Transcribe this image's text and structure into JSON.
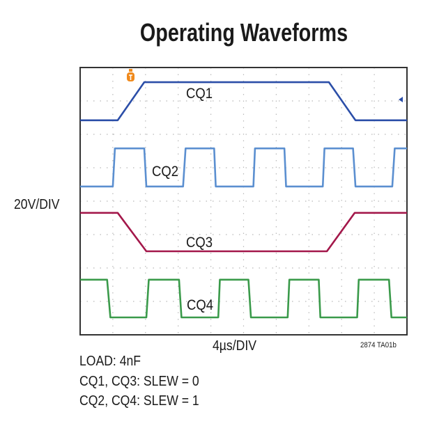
{
  "chart_data": {
    "type": "line",
    "title": "Operating Waveforms",
    "xlabel": "4µs/DIV",
    "ylabel": "20V/DIV",
    "x_unit": "µs",
    "y_unit": "divisions",
    "xlim": [
      0,
      40
    ],
    "ylim": [
      0,
      8
    ],
    "grid": true,
    "figure_id": "2874 TA01b",
    "notes": [
      "LOAD: 4nF",
      "CQ1, CQ3: SLEW = 0",
      "CQ2, CQ4: SLEW = 1"
    ],
    "series": [
      {
        "name": "CQ1",
        "color": "#2b4ea8",
        "x": [
          0,
          4.6,
          7.85,
          30.45,
          33.7,
          40
        ],
        "y": [
          6.42,
          6.42,
          7.56,
          7.56,
          6.42,
          6.42
        ]
      },
      {
        "name": "CQ2",
        "color": "#5b8fd0",
        "x": [
          0,
          4.0,
          4.26,
          7.85,
          8.1,
          12.6,
          12.9,
          16.4,
          16.6,
          21.2,
          21.4,
          25.0,
          25.2,
          29.7,
          29.9,
          33.4,
          33.7,
          38.2,
          38.5,
          40
        ],
        "y": [
          4.44,
          4.44,
          5.58,
          5.58,
          4.44,
          4.44,
          5.58,
          5.58,
          4.44,
          4.44,
          5.58,
          5.58,
          4.44,
          4.44,
          5.58,
          5.58,
          4.44,
          4.44,
          5.58,
          5.58
        ]
      },
      {
        "name": "CQ3",
        "color": "#a3174a",
        "x": [
          0,
          4.6,
          8.1,
          30.2,
          33.6,
          40
        ],
        "y": [
          3.65,
          3.65,
          2.5,
          2.5,
          3.65,
          3.65
        ]
      },
      {
        "name": "CQ4",
        "color": "#3a9a4a",
        "x": [
          0,
          3.3,
          3.7,
          8.1,
          8.4,
          12.1,
          12.4,
          16.9,
          17.1,
          20.6,
          20.9,
          25.4,
          25.6,
          29.2,
          29.4,
          33.9,
          34.1,
          37.8,
          38.1,
          40
        ],
        "y": [
          1.65,
          1.65,
          0.52,
          0.52,
          1.65,
          1.65,
          0.52,
          0.52,
          1.65,
          1.65,
          0.52,
          0.52,
          1.65,
          1.65,
          0.52,
          0.52,
          1.65,
          1.65,
          0.52,
          0.52
        ]
      }
    ],
    "markers": {
      "trigger_icon": "trigger-T-icon",
      "trigger_color": "#f08a1c",
      "reference_icon": "ground-arrow-icon"
    }
  }
}
